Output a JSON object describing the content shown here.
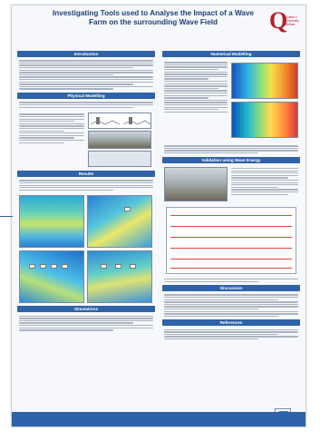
{
  "poster": {
    "title": "Investigating Tools used to Analyse the Impact of a Wave Farm on the surrounding Wave Field",
    "authors_line1": "",
    "authors_line2": "",
    "logo": {
      "letter": "Q",
      "text": "Queen's University Belfast"
    },
    "footer_text": "",
    "left_sections": [
      {
        "heading": "Introduction"
      },
      {
        "heading": "Physical Modelling"
      },
      {
        "heading": "Results"
      },
      {
        "heading": "Simulations"
      }
    ],
    "right_sections": [
      {
        "heading": "Numerical Modelling"
      },
      {
        "heading": "Validation using Wave Energy"
      },
      {
        "heading": "Discussion"
      },
      {
        "heading": "References"
      }
    ]
  },
  "colors": {
    "section_band": "#2f62a8",
    "title_text": "#1d3f7a",
    "crest": "#b51f2e"
  }
}
